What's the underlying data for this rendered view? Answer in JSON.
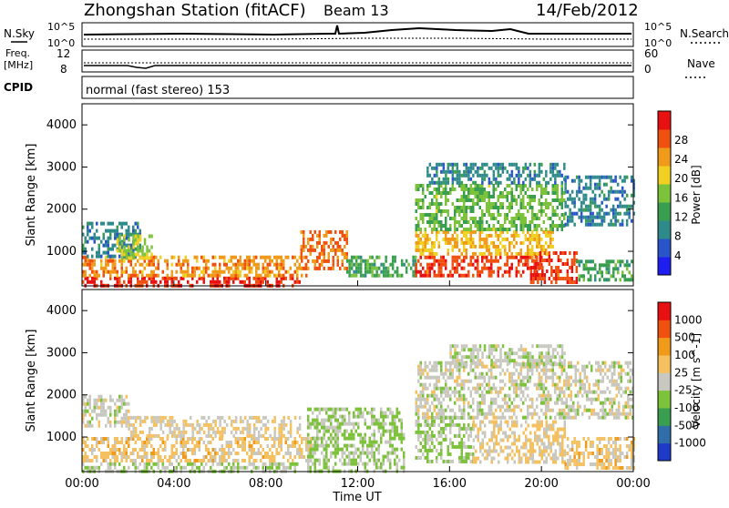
{
  "header": {
    "station": "Zhongshan Station (fitACF)",
    "beam": "Beam 13",
    "date": "14/Feb/2012"
  },
  "panels": {
    "nsky_label": "N.Sky",
    "nsky_ticks": [
      "10^5",
      "10^0"
    ],
    "nsearch_label": "N.Search",
    "freq_label": "Freq.",
    "freq_unit": "[MHz]",
    "freq_ticks": [
      "12",
      "8"
    ],
    "nave_label": "Nave",
    "nave_ticks": [
      "60",
      "0"
    ],
    "cpid_label": "CPID",
    "cpid_text": "normal (fast stereo) 153"
  },
  "colors": {
    "power": [
      "#1e1ef0",
      "#2a55c8",
      "#2f8a8a",
      "#3a9e50",
      "#7cc23a",
      "#f0d020",
      "#f09a1a",
      "#f05010",
      "#e81010"
    ],
    "velocity": [
      "#e81010",
      "#f05010",
      "#f09a1a",
      "#f5c060",
      "#c8c8c0",
      "#7cc23a",
      "#3a9e50",
      "#2f6ea8",
      "#1e3ac8"
    ]
  },
  "chart_data": [
    {
      "type": "heatmap",
      "title": "",
      "xlabel": "",
      "ylabel": "Slant Range [km]",
      "x_ticks": [
        "00:00",
        "04:00",
        "08:00",
        "12:00",
        "16:00",
        "20:00",
        "00:00"
      ],
      "y_ticks": [
        "1000",
        "2000",
        "3000",
        "4000"
      ],
      "ylim": [
        180,
        4500
      ],
      "colorbar": {
        "label": "Power [dB]",
        "ticks": [
          "4",
          "8",
          "12",
          "16",
          "20",
          "24",
          "28"
        ],
        "range": [
          0,
          30
        ]
      },
      "regions": [
        {
          "t": [
            0,
            9.5
          ],
          "r": [
            200,
            400
          ],
          "v": 27
        },
        {
          "t": [
            0,
            9.8
          ],
          "r": [
            400,
            900
          ],
          "v": 22
        },
        {
          "t": [
            0,
            2.5
          ],
          "r": [
            900,
            1700
          ],
          "v": 8
        },
        {
          "t": [
            1.5,
            3.0
          ],
          "r": [
            800,
            1400
          ],
          "v": 16
        },
        {
          "t": [
            9.5,
            11.5
          ],
          "r": [
            600,
            1500
          ],
          "v": 24
        },
        {
          "t": [
            11.5,
            14.5
          ],
          "r": [
            400,
            900
          ],
          "v": 12
        },
        {
          "t": [
            14.5,
            20.0
          ],
          "r": [
            400,
            900
          ],
          "v": 26
        },
        {
          "t": [
            14.5,
            20.5
          ],
          "r": [
            900,
            1500
          ],
          "v": 20
        },
        {
          "t": [
            14.5,
            21.0
          ],
          "r": [
            1500,
            2600
          ],
          "v": 14
        },
        {
          "t": [
            15.0,
            21.0
          ],
          "r": [
            2600,
            3100
          ],
          "v": 8
        },
        {
          "t": [
            19.5,
            21.5
          ],
          "r": [
            300,
            1000
          ],
          "v": 26
        },
        {
          "t": [
            21.5,
            24.0
          ],
          "r": [
            300,
            800
          ],
          "v": 12
        },
        {
          "t": [
            21.0,
            24.0
          ],
          "r": [
            1600,
            2800
          ],
          "v": 8
        }
      ]
    },
    {
      "type": "heatmap",
      "title": "",
      "xlabel": "Time UT",
      "ylabel": "Slant Range [km]",
      "x_ticks": [
        "00:00",
        "04:00",
        "08:00",
        "12:00",
        "16:00",
        "20:00",
        "00:00"
      ],
      "y_ticks": [
        "1000",
        "2000",
        "3000",
        "4000"
      ],
      "ylim": [
        180,
        4500
      ],
      "colorbar": {
        "label": "Velocity [m s^-1]",
        "ticks": [
          "1000",
          "500",
          "100",
          "25",
          "-25",
          "-100",
          "-500",
          "-1000"
        ],
        "range": [
          -1000,
          1000
        ]
      },
      "regions": [
        {
          "t": [
            0,
            9.5
          ],
          "r": [
            200,
            400
          ],
          "v": -100
        },
        {
          "t": [
            0,
            10.0
          ],
          "r": [
            400,
            1000
          ],
          "v": 200
        },
        {
          "t": [
            0,
            2.0
          ],
          "r": [
            1300,
            2000
          ],
          "v": 0
        },
        {
          "t": [
            2.0,
            9.5
          ],
          "r": [
            1000,
            1500
          ],
          "v": 100
        },
        {
          "t": [
            9.8,
            14.0
          ],
          "r": [
            200,
            1700
          ],
          "v": -150
        },
        {
          "t": [
            14.5,
            17.0
          ],
          "r": [
            400,
            1500
          ],
          "v": -120
        },
        {
          "t": [
            17.0,
            21.0
          ],
          "r": [
            400,
            1400
          ],
          "v": 150
        },
        {
          "t": [
            14.5,
            24.0
          ],
          "r": [
            1500,
            2800
          ],
          "v": 0
        },
        {
          "t": [
            16.0,
            21.0
          ],
          "r": [
            2700,
            3200
          ],
          "v": -60
        },
        {
          "t": [
            21.0,
            24.0
          ],
          "r": [
            300,
            1000
          ],
          "v": 200
        }
      ]
    }
  ]
}
